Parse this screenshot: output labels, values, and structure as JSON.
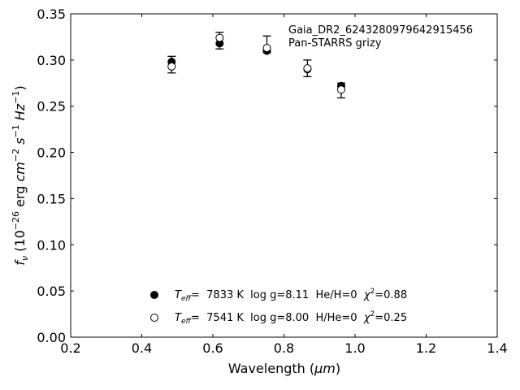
{
  "chart_data": {
    "type": "scatter",
    "xlabel_prefix": "Wavelength (",
    "xlabel_unit": "μm",
    "xlabel_suffix": ")",
    "ylabel": {
      "f": "f",
      "nu": "ν",
      "open": " (10",
      "exp1": "−26",
      "erg": " erg ",
      "cm": "cm",
      "exp2": "−2",
      "s": " s",
      "exp3": "−1",
      "hz": " Hz",
      "exp4": "−1",
      "close": ")"
    },
    "xlim": [
      0.2,
      1.4
    ],
    "ylim": [
      0.0,
      0.35
    ],
    "xticks": [
      "0.2",
      "0.4",
      "0.6",
      "0.8",
      "1.0",
      "1.2",
      "1.4"
    ],
    "xtick_values": [
      0.2,
      0.4,
      0.6,
      0.8,
      1.0,
      1.2,
      1.4
    ],
    "yticks": [
      "0.00",
      "0.05",
      "0.10",
      "0.15",
      "0.20",
      "0.25",
      "0.30",
      "0.35"
    ],
    "ytick_values": [
      0.0,
      0.05,
      0.1,
      0.15,
      0.2,
      0.25,
      0.3,
      0.35
    ],
    "annotation": [
      "Gaia_DR2_6243280979642915456",
      "Pan-STARRS grizy"
    ],
    "annotation_position": "top-right",
    "legend_position": "bottom-center",
    "grid": false,
    "observed": {
      "x": [
        0.484,
        0.619,
        0.752,
        0.866,
        0.961
      ],
      "y": [
        0.295,
        0.321,
        0.317,
        0.291,
        0.267
      ],
      "yerr": [
        0.009,
        0.009,
        0.009,
        0.009,
        0.008
      ]
    },
    "series": [
      {
        "name": {
          "T": "T",
          "sub": "eff",
          "rest1": "=  7833 K  log g=8.11  He/H=0  ",
          "chi": "χ",
          "sup": "2",
          "rest2": "=0.88"
        },
        "marker": "filled-circle",
        "x": [
          0.484,
          0.619,
          0.752,
          0.866,
          0.961
        ],
        "y": [
          0.298,
          0.318,
          0.31,
          0.29,
          0.272
        ]
      },
      {
        "name": {
          "T": "T",
          "sub": "eff",
          "rest1": "=  7541 K  log g=8.00  H/He=0  ",
          "chi": "χ",
          "sup": "2",
          "rest2": "=0.25"
        },
        "marker": "open-circle",
        "x": [
          0.484,
          0.619,
          0.752,
          0.866,
          0.961
        ],
        "y": [
          0.293,
          0.324,
          0.313,
          0.291,
          0.268
        ]
      }
    ]
  }
}
